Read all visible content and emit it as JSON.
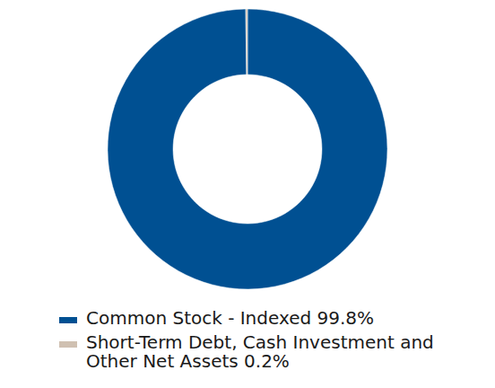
{
  "chart_data": {
    "type": "donut",
    "categories": [
      "Common Stock - Indexed",
      "Short-Term Debt, Cash Investment and Other Net Assets"
    ],
    "values": [
      99.8,
      0.2
    ],
    "value_labels": [
      "99.8%",
      "0.2%"
    ],
    "colors": [
      "#005092",
      "#cfc0b1"
    ],
    "legend": "bottom"
  }
}
